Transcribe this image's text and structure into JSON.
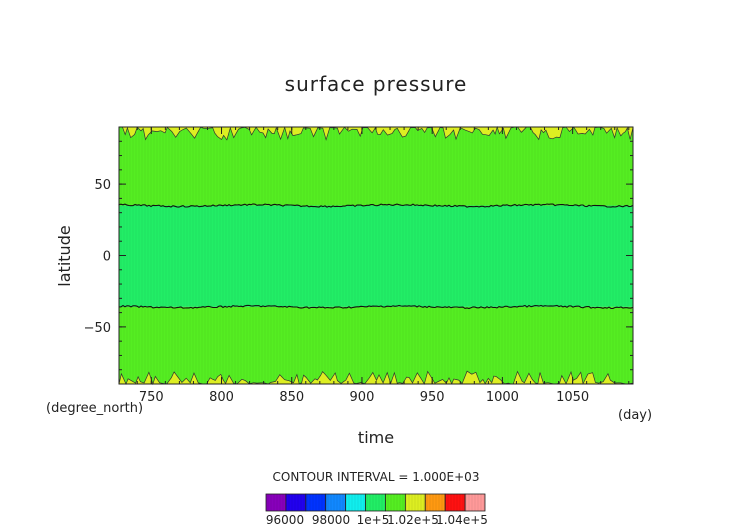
{
  "chart_data": {
    "type": "heatmap",
    "title": "surface pressure",
    "xlabel": "time",
    "xunit": "(day)",
    "ylabel": "latitude",
    "yunit": "(degree_north)",
    "xlim": [
      727,
      1093
    ],
    "ylim": [
      -90,
      90
    ],
    "xticks": [
      750,
      800,
      850,
      900,
      950,
      1000,
      1050
    ],
    "yticks": [
      50,
      0,
      -50
    ],
    "ytick_labels": [
      "50",
      "0",
      "−50"
    ],
    "contour_interval_text": "CONTOUR INTERVAL = 1.000E+03",
    "regions": [
      {
        "lat_from": 35,
        "lat_to": -36,
        "level": "1e+5 to 1.01e+5",
        "color": "#22ee66"
      },
      {
        "lat_from": 90,
        "lat_to": 35,
        "level": "1.01e+5 to 1.02e+5",
        "color": "#55ee22"
      },
      {
        "lat_from": -36,
        "lat_to": -90,
        "level": "1.01e+5 to 1.02e+5",
        "color": "#55ee22"
      },
      {
        "lat_from": 90,
        "lat_to": 82,
        "level": "1.02e+5 to 1.03e+5 (patches)",
        "color": "#ddee22"
      },
      {
        "lat_from": -82,
        "lat_to": -90,
        "level": "1.02e+5 to 1.03e+5 (patches)",
        "color": "#ddee22"
      }
    ],
    "colorbar": {
      "colors": [
        "#8800bb",
        "#2200ee",
        "#0033ff",
        "#1188ff",
        "#11eeee",
        "#22ee66",
        "#55ee22",
        "#ddee22",
        "#ff9911",
        "#ff1111",
        "#ff9999"
      ],
      "labels": [
        "96000",
        "98000",
        "1e+5",
        "1.02e+5",
        "1.04e+5"
      ]
    }
  }
}
